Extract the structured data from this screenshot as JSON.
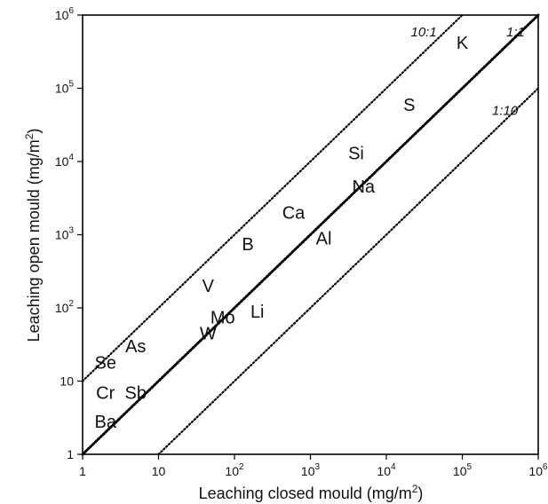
{
  "chart_data": {
    "type": "scatter",
    "title": "",
    "xlabel": "Leaching closed mould (mg/m²)",
    "ylabel": "Leaching open mould (mg/m²)",
    "xscale": "log",
    "yscale": "log",
    "xlim": [
      1,
      1000000
    ],
    "ylim": [
      1,
      1000000
    ],
    "grid": false,
    "x_ticks": [
      {
        "value": 1,
        "base": "1",
        "exp": ""
      },
      {
        "value": 10,
        "base": "10",
        "exp": ""
      },
      {
        "value": 100,
        "base": "10",
        "exp": "2"
      },
      {
        "value": 1000,
        "base": "10",
        "exp": "3"
      },
      {
        "value": 10000,
        "base": "10",
        "exp": "4"
      },
      {
        "value": 100000,
        "base": "10",
        "exp": "5"
      },
      {
        "value": 1000000,
        "base": "10",
        "exp": "6"
      }
    ],
    "y_ticks": [
      {
        "value": 1,
        "base": "1",
        "exp": ""
      },
      {
        "value": 10,
        "base": "10",
        "exp": ""
      },
      {
        "value": 100,
        "base": "10",
        "exp": "2"
      },
      {
        "value": 1000,
        "base": "10",
        "exp": "3"
      },
      {
        "value": 10000,
        "base": "10",
        "exp": "4"
      },
      {
        "value": 100000,
        "base": "10",
        "exp": "5"
      },
      {
        "value": 1000000,
        "base": "10",
        "exp": "6"
      }
    ],
    "reference_lines": [
      {
        "label": "10:1",
        "ratio": 10
      },
      {
        "label": "1:1",
        "ratio": 1
      },
      {
        "label": "1:10",
        "ratio": 0.1
      }
    ],
    "points": [
      {
        "label": "K",
        "x": 100000,
        "y": 420000
      },
      {
        "label": "S",
        "x": 20000,
        "y": 60000
      },
      {
        "label": "Si",
        "x": 4000,
        "y": 13000
      },
      {
        "label": "Na",
        "x": 5000,
        "y": 4600
      },
      {
        "label": "Ca",
        "x": 600,
        "y": 2000
      },
      {
        "label": "Al",
        "x": 1500,
        "y": 900
      },
      {
        "label": "B",
        "x": 150,
        "y": 750
      },
      {
        "label": "V",
        "x": 45,
        "y": 200
      },
      {
        "label": "Li",
        "x": 200,
        "y": 90
      },
      {
        "label": "Mo",
        "x": 70,
        "y": 75
      },
      {
        "label": "W",
        "x": 45,
        "y": 45
      },
      {
        "label": "As",
        "x": 5,
        "y": 30
      },
      {
        "label": "Se",
        "x": 2,
        "y": 18
      },
      {
        "label": "Cr",
        "x": 2,
        "y": 7
      },
      {
        "label": "Sb",
        "x": 5,
        "y": 7
      },
      {
        "label": "Ba",
        "x": 2,
        "y": 2.8
      }
    ]
  }
}
